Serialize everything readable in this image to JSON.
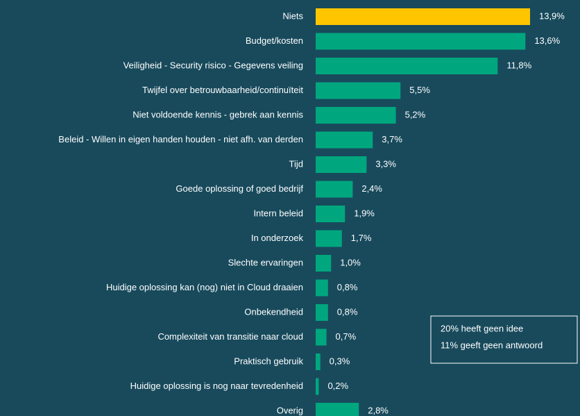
{
  "chart_data": {
    "type": "bar",
    "orientation": "horizontal",
    "categories": [
      "Niets",
      "Budget/kosten",
      "Veiligheid - Security risico - Gegevens veiling",
      "Twijfel over betrouwbaarheid/continuïteit",
      "Niet voldoende kennis - gebrek aan kennis",
      "Beleid - Willen in eigen handen houden - niet afh. van derden",
      "Tijd",
      "Goede oplossing of goed bedrijf",
      "Intern beleid",
      "In onderzoek",
      "Slechte ervaringen",
      "Huidige oplossing kan (nog) niet in Cloud draaien",
      "Onbekendheid",
      "Complexiteit van transitie naar cloud",
      "Praktisch gebruik",
      "Huidige oplossing is nog naar tevredenheid",
      "Overig"
    ],
    "values": [
      13.9,
      13.6,
      11.8,
      5.5,
      5.2,
      3.7,
      3.3,
      2.4,
      1.9,
      1.7,
      1.0,
      0.8,
      0.8,
      0.7,
      0.3,
      0.2,
      2.8
    ],
    "value_labels": [
      "13,9%",
      "13,6%",
      "11,8%",
      "5,5%",
      "5,2%",
      "3,7%",
      "3,3%",
      "2,4%",
      "1,9%",
      "1,7%",
      "1,0%",
      "0,8%",
      "0,8%",
      "0,7%",
      "0,3%",
      "0,2%",
      "2,8%"
    ],
    "colors": [
      "#ffc600",
      "#00a77e",
      "#00a77e",
      "#00a77e",
      "#00a77e",
      "#00a77e",
      "#00a77e",
      "#00a77e",
      "#00a77e",
      "#00a77e",
      "#00a77e",
      "#00a77e",
      "#00a77e",
      "#00a77e",
      "#00a77e",
      "#00a77e",
      "#00a77e"
    ],
    "annotations": [
      "20% heeft geen idee",
      "11% geeft geen antwoord"
    ]
  }
}
